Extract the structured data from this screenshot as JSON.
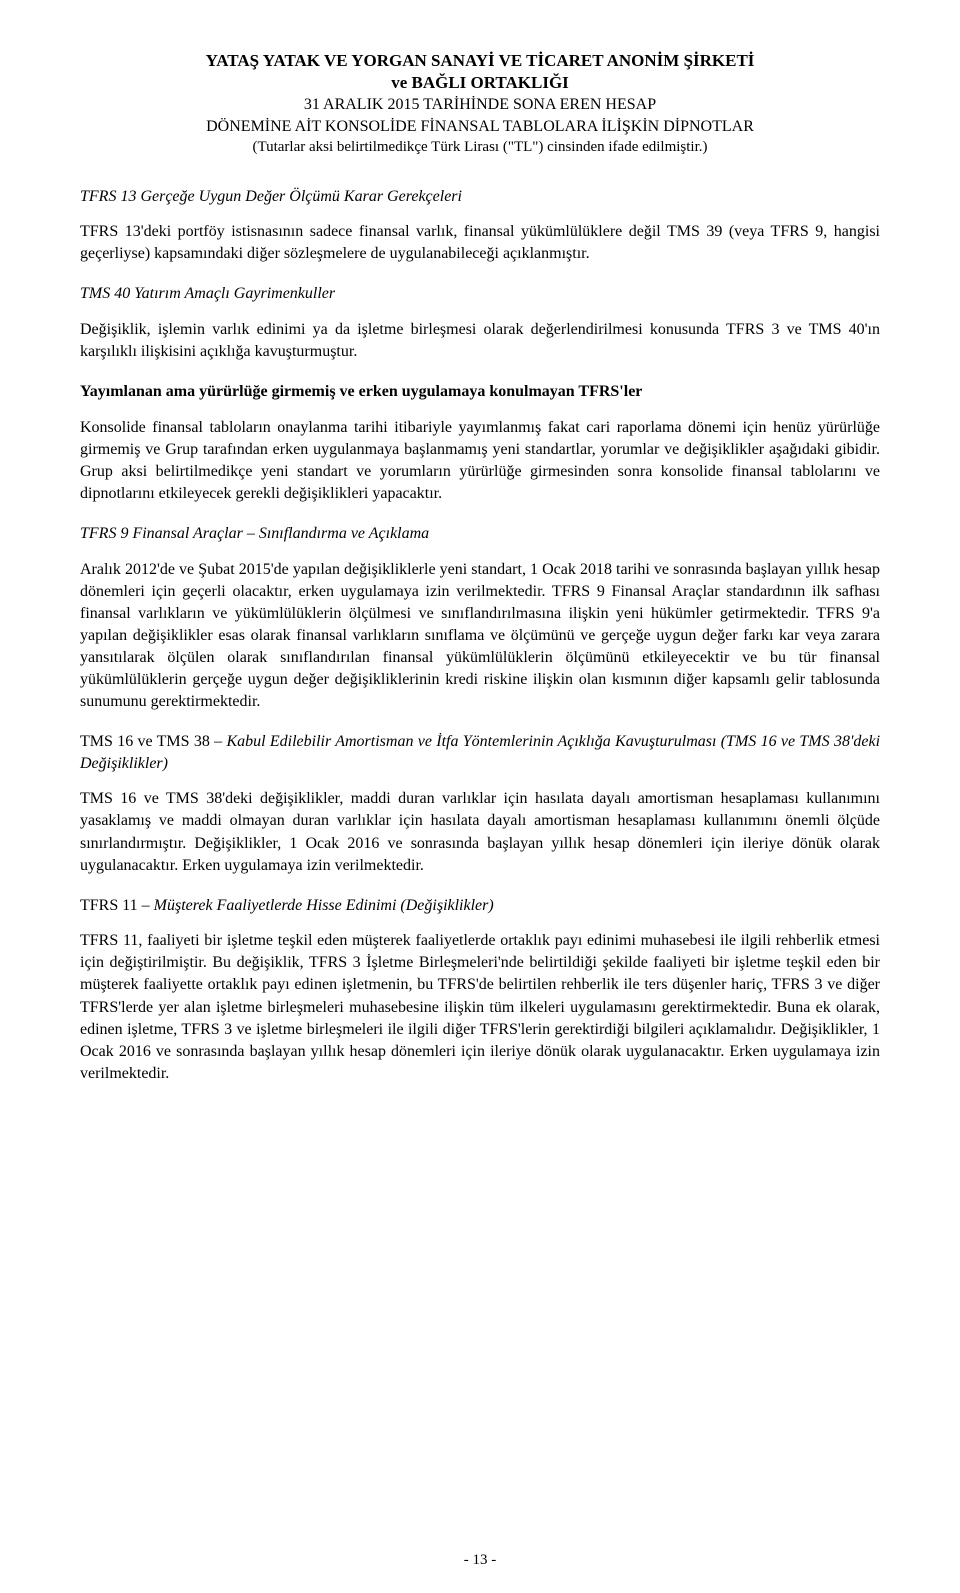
{
  "header": {
    "line1": "YATAŞ YATAK VE YORGAN SANAYİ VE TİCARET ANONİM ŞİRKETİ",
    "line2": "ve BAĞLI ORTAKLIĞI",
    "line3": "31 ARALIK 2015 TARİHİNDE SONA EREN HESAP",
    "line4": "DÖNEMİNE AİT KONSOLİDE FİNANSAL TABLOLARA İLİŞKİN DİPNOTLAR",
    "line5": "(Tutarlar aksi belirtilmedikçe Türk Lirası (\"TL\") cinsinden ifade edilmiştir.)"
  },
  "sections": {
    "s1_title": "TFRS 13 Gerçeğe Uygun Değer Ölçümü Karar Gerekçeleri",
    "s1_body": "TFRS 13'deki portföy istisnasının sadece finansal varlık, finansal yükümlülüklere değil TMS 39 (veya TFRS 9, hangisi geçerliyse) kapsamındaki diğer sözleşmelere de uygulanabileceği açıklanmıştır.",
    "s2_title": "TMS 40 Yatırım Amaçlı Gayrimenkuller",
    "s2_body": "Değişiklik, işlemin varlık edinimi ya da işletme birleşmesi olarak değerlendirilmesi konusunda TFRS 3 ve TMS 40'ın karşılıklı ilişkisini açıklığa kavuşturmuştur.",
    "s3_title": "Yayımlanan ama yürürlüğe girmemiş ve erken uygulamaya konulmayan TFRS'ler",
    "s3_body": "Konsolide finansal tabloların onaylanma tarihi itibariyle yayımlanmış fakat cari raporlama dönemi için henüz yürürlüğe girmemiş ve Grup tarafından erken uygulanmaya başlanmamış yeni standartlar, yorumlar ve değişiklikler aşağıdaki gibidir. Grup aksi belirtilmedikçe yeni standart ve yorumların yürürlüğe girmesinden sonra konsolide finansal tablolarını ve dipnotlarını etkileyecek gerekli değişiklikleri yapacaktır.",
    "s4_title": "TFRS 9 Finansal Araçlar – Sınıflandırma ve Açıklama",
    "s4_body": "Aralık 2012'de ve Şubat 2015'de yapılan değişikliklerle yeni standart, 1 Ocak 2018 tarihi ve sonrasında başlayan yıllık hesap dönemleri için geçerli olacaktır, erken uygulamaya izin verilmektedir. TFRS 9 Finansal Araçlar standardının ilk safhası finansal varlıkların ve yükümlülüklerin ölçülmesi ve sınıflandırılmasına ilişkin yeni hükümler getirmektedir. TFRS 9'a yapılan değişiklikler esas olarak finansal varlıkların sınıflama ve ölçümünü ve gerçeğe uygun değer farkı kar veya zarara yansıtılarak ölçülen olarak sınıflandırılan finansal yükümlülüklerin ölçümünü etkileyecektir ve bu tür finansal yükümlülüklerin gerçeğe uygun değer değişikliklerinin kredi riskine ilişkin olan kısmının diğer kapsamlı gelir tablosunda sunumunu gerektirmektedir.",
    "s5_plain": "TMS 16 ve TMS 38 – ",
    "s5_ital": "Kabul Edilebilir Amortisman ve İtfa Yöntemlerinin Açıklığa Kavuşturulması (TMS 16 ve TMS 38'deki Değişiklikler)",
    "s5_body": "TMS 16 ve TMS 38'deki değişiklikler, maddi duran varlıklar için hasılata dayalı amortisman hesaplaması kullanımını yasaklamış ve maddi olmayan duran varlıklar için hasılata dayalı amortisman hesaplaması kullanımını önemli ölçüde sınırlandırmıştır. Değişiklikler, 1 Ocak 2016 ve sonrasında başlayan yıllık hesap dönemleri için ileriye dönük olarak uygulanacaktır. Erken uygulamaya izin verilmektedir.",
    "s6_plain": "TFRS 11 – ",
    "s6_ital": "Müşterek Faaliyetlerde Hisse Edinimi (Değişiklikler)",
    "s6_body": "TFRS 11, faaliyeti bir işletme teşkil eden müşterek faaliyetlerde ortaklık payı edinimi muhasebesi ile ilgili rehberlik etmesi için değiştirilmiştir. Bu değişiklik, TFRS 3 İşletme Birleşmeleri'nde belirtildiği şekilde faaliyeti bir işletme teşkil eden bir müşterek faaliyette ortaklık payı edinen işletmenin, bu TFRS'de belirtilen rehberlik ile ters düşenler hariç, TFRS 3 ve diğer TFRS'lerde yer alan işletme birleşmeleri muhasebesine ilişkin tüm ilkeleri uygulamasını gerektirmektedir. Buna ek olarak, edinen işletme, TFRS 3 ve işletme birleşmeleri ile ilgili diğer TFRS'lerin gerektirdiği bilgileri açıklamalıdır. Değişiklikler, 1 Ocak 2016 ve sonrasında başlayan yıllık hesap dönemleri için ileriye dönük olarak uygulanacaktır. Erken uygulamaya izin verilmektedir."
  },
  "footer": {
    "page": "- 13 -"
  }
}
